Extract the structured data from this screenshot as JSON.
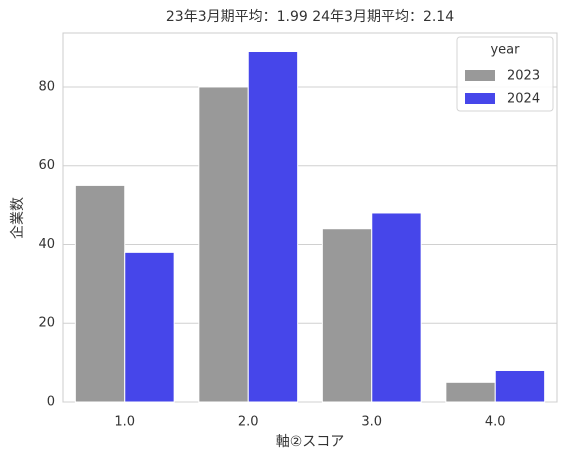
{
  "chart_data": {
    "type": "bar",
    "title": "23年3月期平均：1.99   24年3月期平均：2.14",
    "x_label": "軸②スコア",
    "y_label": "企業数",
    "categories": [
      "1.0",
      "2.0",
      "3.0",
      "4.0"
    ],
    "series": [
      {
        "name": "2023",
        "color": "#999999",
        "values": [
          55,
          80,
          44,
          5
        ]
      },
      {
        "name": "2024",
        "color": "#4646ea",
        "values": [
          38,
          89,
          48,
          8
        ]
      }
    ],
    "ylim": [
      0,
      93.7
    ],
    "yticks": [
      0,
      20,
      40,
      60,
      80
    ],
    "grid": true,
    "legend_title": "year",
    "legend_position": "upper right"
  }
}
